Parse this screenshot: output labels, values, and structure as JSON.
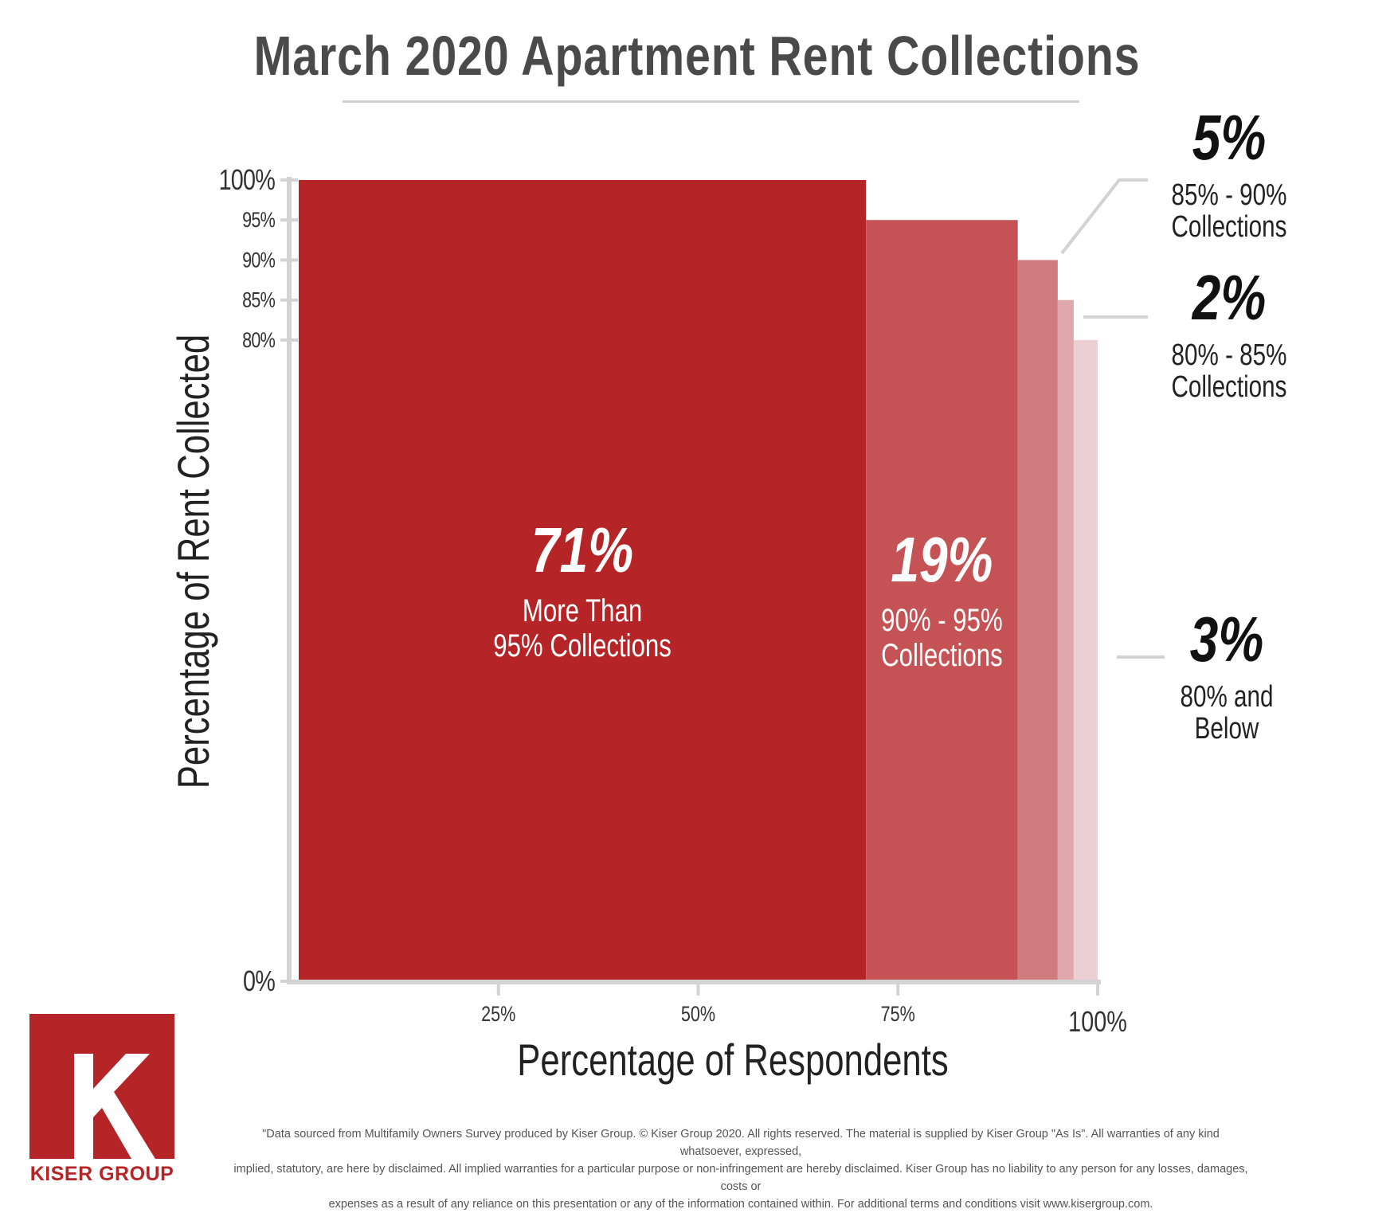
{
  "title": "March 2020 Apartment Rent Collections",
  "chart_data": {
    "type": "bar",
    "title": "March 2020 Apartment Rent Collections",
    "xlabel": "Percentage of Respondents",
    "ylabel": "Percentage of Rent Collected",
    "x_ticks": [
      "25%",
      "50%",
      "75%",
      "100%"
    ],
    "x_tick_values": [
      25,
      50,
      75,
      100
    ],
    "y_ticks": [
      "100%",
      "95%",
      "90%",
      "85%",
      "80%",
      "0%"
    ],
    "y_tick_values": [
      100,
      95,
      90,
      85,
      80,
      0
    ],
    "xlim": [
      0,
      100
    ],
    "ylim": [
      0,
      100
    ],
    "grid": false,
    "segments": [
      {
        "share": 71,
        "rent_collected": 100,
        "value_label": "71%",
        "line1": "More Than",
        "line2": "95% Collections",
        "color": "#b52527"
      },
      {
        "share": 19,
        "rent_collected": 95,
        "value_label": "19%",
        "line1": "90% - 95%",
        "line2": "Collections",
        "color": "#c55355"
      },
      {
        "share": 5,
        "rent_collected": 90,
        "value_label": "5%",
        "line1": "85% - 90%",
        "line2": "Collections",
        "color": "#d07b7e"
      },
      {
        "share": 2,
        "rent_collected": 85,
        "value_label": "2%",
        "line1": "80% - 85%",
        "line2": "Collections",
        "color": "#dfa8ad"
      },
      {
        "share": 3,
        "rent_collected": 80,
        "value_label": "3%",
        "line1": "80% and",
        "line2": "Below",
        "color": "#ebcfd3"
      }
    ]
  },
  "logo": {
    "letter": "K",
    "name": "KISER GROUP",
    "color": "#b52527"
  },
  "disclaimer": {
    "line1": "\"Data sourced from Multifamily Owners Survey produced by Kiser Group. © Kiser Group 2020. All rights reserved. The material is supplied by Kiser Group \"As Is\". All warranties of any kind whatsoever, expressed,",
    "line2": "implied, statutory, are here by disclaimed. All implied warranties for a particular purpose or non-infringement are hereby disclaimed. Kiser Group has no liability to any person for any losses, damages, costs or",
    "line3": "expenses as a result of any reliance on this presentation or any of the information contained within. For additional terms and conditions visit www.kisergroup.com."
  }
}
